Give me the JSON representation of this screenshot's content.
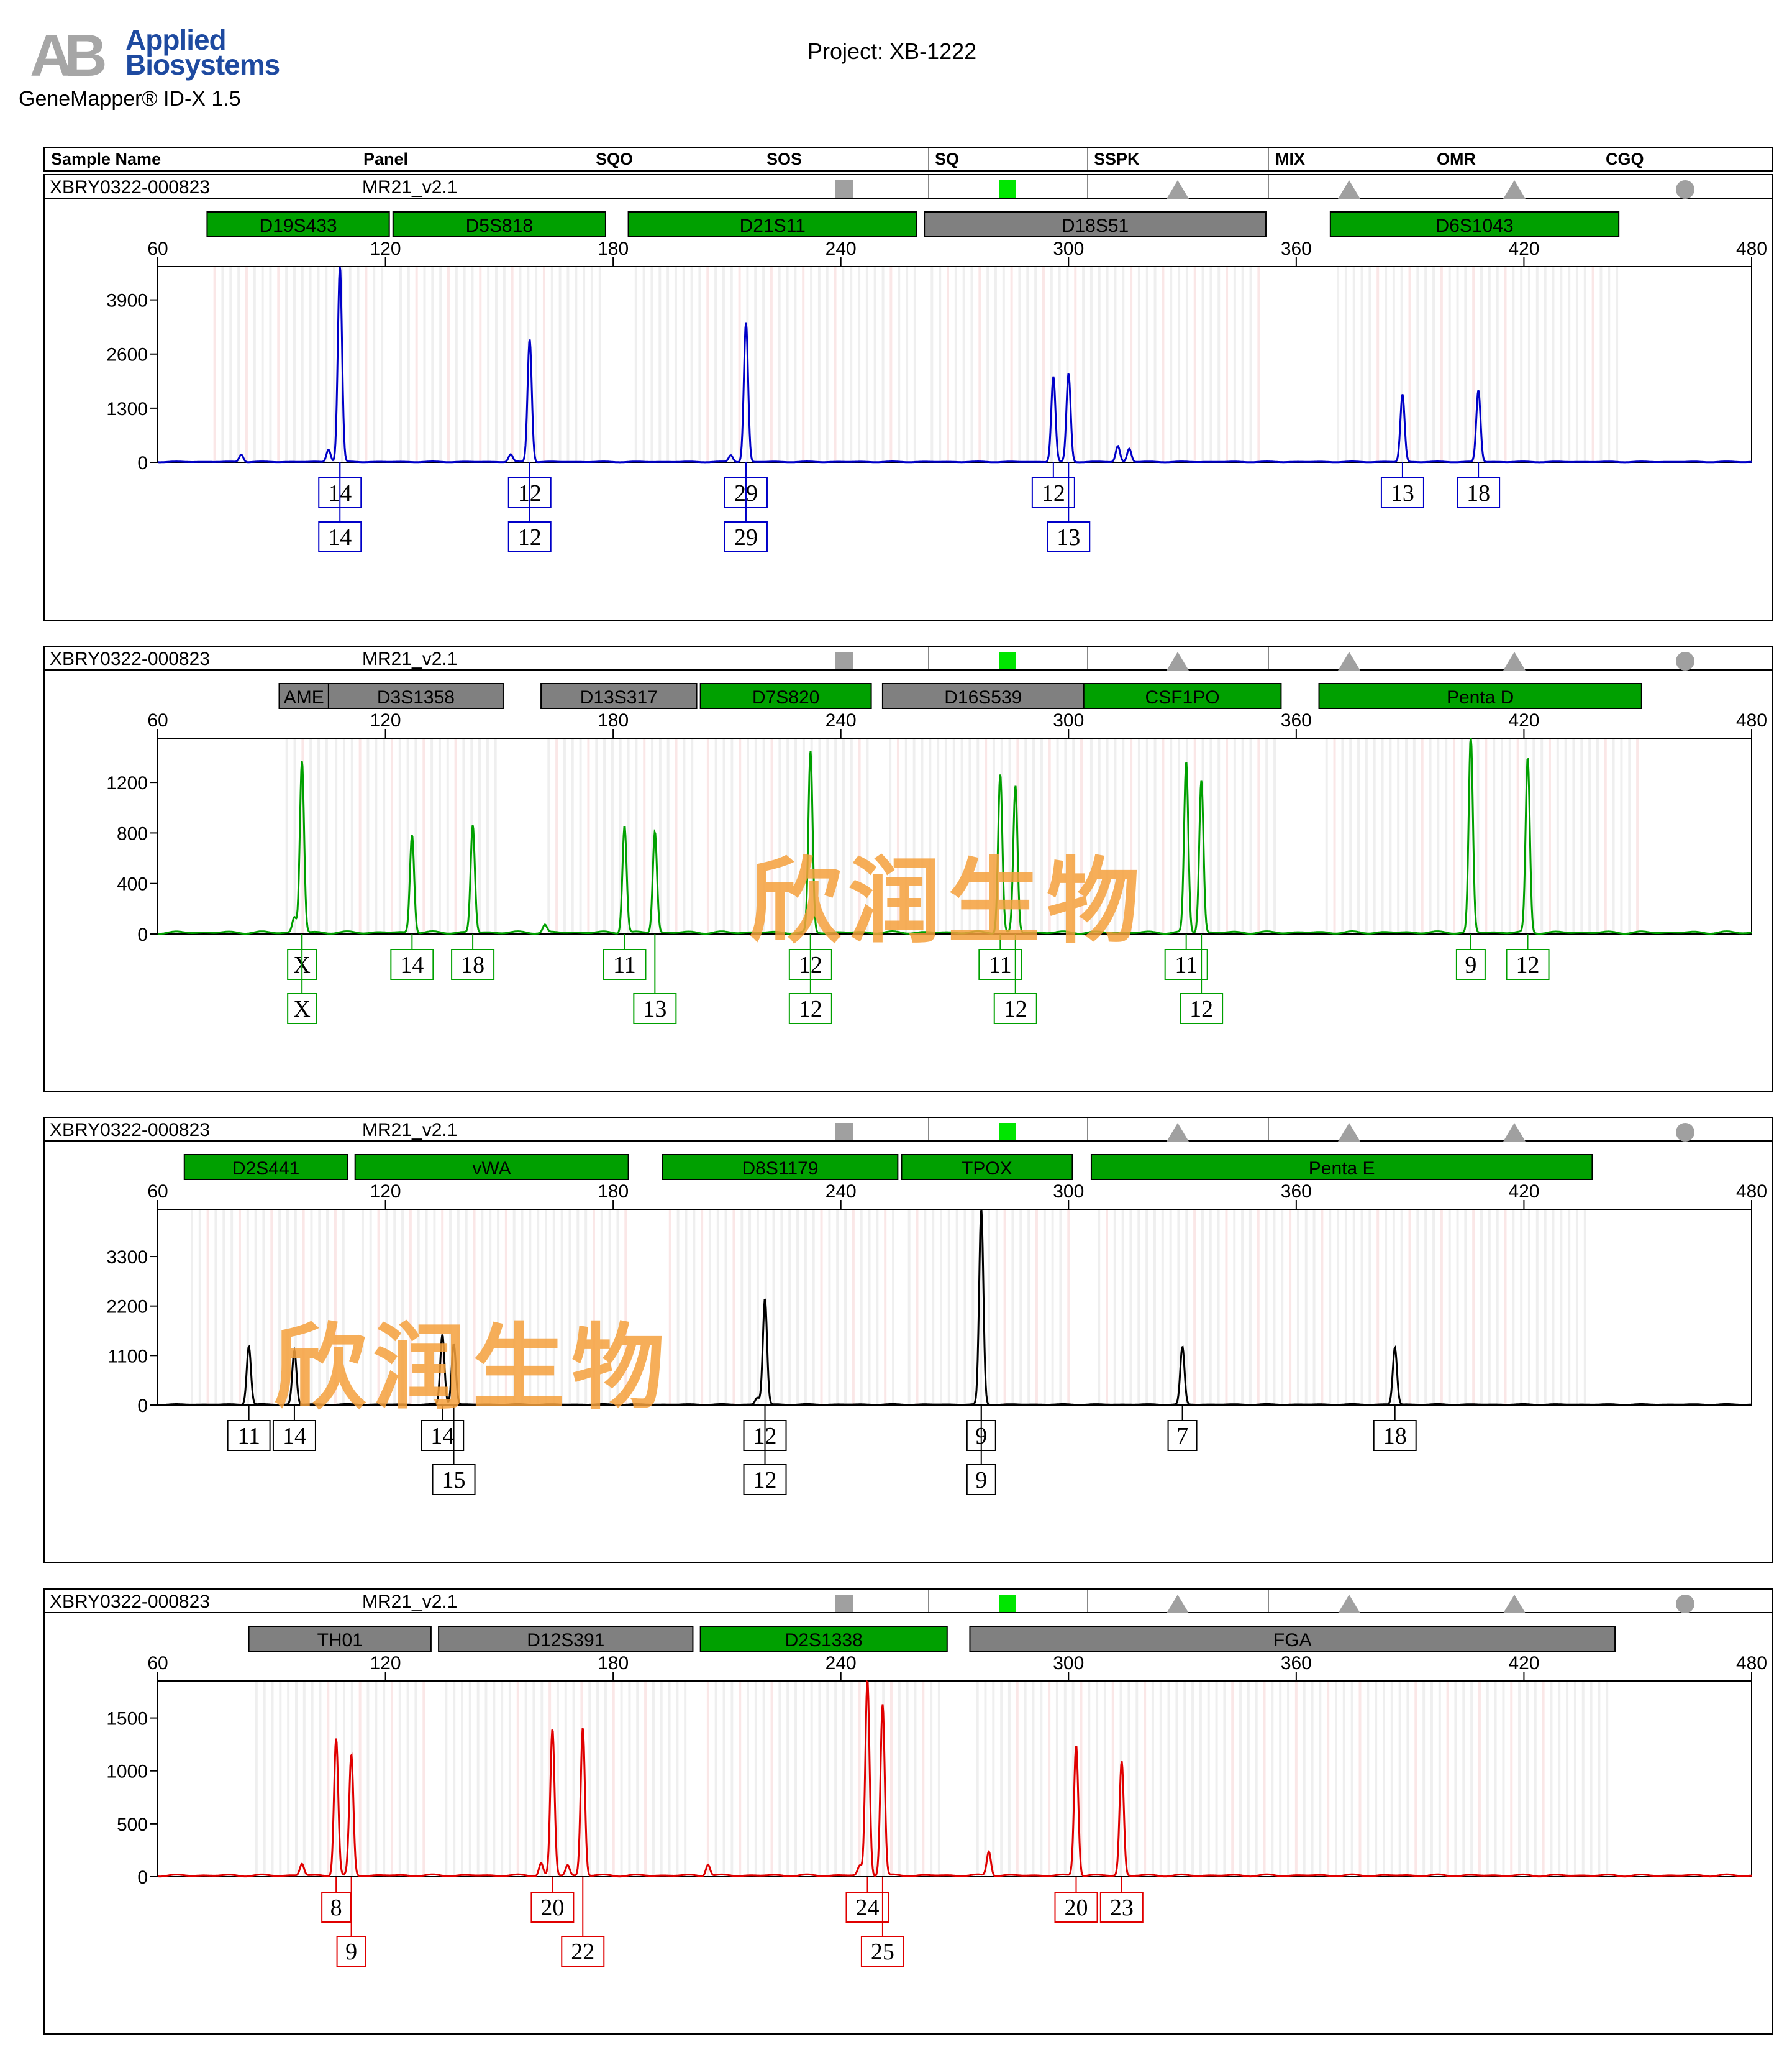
{
  "brand": {
    "line1": "Applied",
    "line2": "Biosystems",
    "app": "GeneMapper® ID-X  1.5"
  },
  "project": "Project: XB-1222",
  "header": {
    "columns": [
      "Sample Name",
      "Panel",
      "SQO",
      "SOS",
      "SQ",
      "SSPK",
      "MIX",
      "OMR",
      "CGQ"
    ]
  },
  "watermark": "欣润生物",
  "colors": {
    "blue": "#0000c8",
    "green": "#00a000",
    "black": "#000000",
    "red": "#e00000",
    "marker_green": "#00a000",
    "marker_gray": "#808080"
  },
  "panels": [
    {
      "sample": "XBRY0322-000823",
      "panel_name": "MR21_v2.1",
      "flags": [
        "sq-gray",
        "sq-green",
        "tri",
        "tri",
        "tri",
        "circ"
      ],
      "dye": "blue",
      "markers": [
        {
          "name": "D19S433",
          "from": 73,
          "to": 121,
          "status": "green"
        },
        {
          "name": "D5S818",
          "from": 122,
          "to": 178,
          "status": "green"
        },
        {
          "name": "D21S11",
          "from": 184,
          "to": 260,
          "status": "green"
        },
        {
          "name": "D18S51",
          "from": 262,
          "to": 352,
          "status": "gray"
        },
        {
          "name": "D6S1043",
          "from": 369,
          "to": 445,
          "status": "green"
        }
      ],
      "chart_data": {
        "type": "line",
        "xlabel": "",
        "ylabel": "",
        "xlim": [
          60,
          480
        ],
        "x_ticks": [
          60,
          120,
          180,
          240,
          300,
          360,
          420,
          480
        ],
        "ylim": [
          0,
          4700
        ],
        "y_ticks": [
          0,
          1300,
          2600,
          3900
        ],
        "peaks": [
          [
            108,
            4700
          ],
          [
            158,
            2950
          ],
          [
            215,
            3350
          ],
          [
            296,
            2050
          ],
          [
            300,
            2120
          ],
          [
            388,
            1620
          ],
          [
            408,
            1720
          ],
          [
            82,
            180
          ],
          [
            105,
            300
          ],
          [
            153,
            180
          ],
          [
            211,
            160
          ],
          [
            313,
            380
          ],
          [
            316,
            320
          ]
        ],
        "alleles": [
          {
            "x": 108,
            "labels": [
              "14",
              "14"
            ]
          },
          {
            "x": 158,
            "labels": [
              "12",
              "12"
            ]
          },
          {
            "x": 215,
            "labels": [
              "29",
              "29"
            ]
          },
          {
            "x": 296,
            "labels": [
              "12"
            ]
          },
          {
            "x": 300,
            "labels": [
              "",
              "13"
            ]
          },
          {
            "x": 388,
            "labels": [
              "13"
            ]
          },
          {
            "x": 408,
            "labels": [
              "18"
            ]
          }
        ]
      }
    },
    {
      "sample": "XBRY0322-000823",
      "panel_name": "MR21_v2.1",
      "flags": [
        "sq-gray",
        "sq-green",
        "tri",
        "tri",
        "tri",
        "circ"
      ],
      "dye": "green",
      "markers": [
        {
          "name": "AME",
          "from": 92,
          "to": 105,
          "status": "gray"
        },
        {
          "name": "D3S1358",
          "from": 105,
          "to": 151,
          "status": "gray"
        },
        {
          "name": "D13S317",
          "from": 161,
          "to": 202,
          "status": "gray"
        },
        {
          "name": "D7S820",
          "from": 203,
          "to": 248,
          "status": "green"
        },
        {
          "name": "D16S539",
          "from": 251,
          "to": 304,
          "status": "gray"
        },
        {
          "name": "CSF1PO",
          "from": 304,
          "to": 356,
          "status": "green"
        },
        {
          "name": "Penta D",
          "from": 366,
          "to": 451,
          "status": "green"
        }
      ],
      "chart_data": {
        "type": "line",
        "xlabel": "",
        "ylabel": "",
        "xlim": [
          60,
          480
        ],
        "x_ticks": [
          60,
          120,
          180,
          240,
          300,
          360,
          420,
          480
        ],
        "ylim": [
          0,
          1550
        ],
        "y_ticks": [
          0,
          400,
          800,
          1200
        ],
        "peaks": [
          [
            98,
            1360
          ],
          [
            127,
            780
          ],
          [
            143,
            850
          ],
          [
            183,
            850
          ],
          [
            191,
            800
          ],
          [
            232,
            1430
          ],
          [
            282,
            1260
          ],
          [
            286,
            1160
          ],
          [
            331,
            1350
          ],
          [
            335,
            1210
          ],
          [
            406,
            1550
          ],
          [
            421,
            1380
          ],
          [
            96,
            120
          ],
          [
            162,
            60
          ]
        ],
        "alleles": [
          {
            "x": 98,
            "labels": [
              "X",
              "X"
            ]
          },
          {
            "x": 127,
            "labels": [
              "14"
            ]
          },
          {
            "x": 143,
            "labels": [
              "18"
            ]
          },
          {
            "x": 183,
            "labels": [
              "11"
            ]
          },
          {
            "x": 191,
            "labels": [
              "",
              "13"
            ]
          },
          {
            "x": 232,
            "labels": [
              "12",
              "12"
            ]
          },
          {
            "x": 282,
            "labels": [
              "11"
            ]
          },
          {
            "x": 286,
            "labels": [
              "",
              "12"
            ]
          },
          {
            "x": 331,
            "labels": [
              "11"
            ]
          },
          {
            "x": 335,
            "labels": [
              "",
              "12"
            ]
          },
          {
            "x": 406,
            "labels": [
              "9"
            ]
          },
          {
            "x": 421,
            "labels": [
              "12"
            ]
          }
        ]
      }
    },
    {
      "sample": "XBRY0322-000823",
      "panel_name": "MR21_v2.1",
      "flags": [
        "sq-gray",
        "sq-green",
        "tri",
        "tri",
        "tri",
        "circ"
      ],
      "dye": "black",
      "markers": [
        {
          "name": "D2S441",
          "from": 67,
          "to": 110,
          "status": "green"
        },
        {
          "name": "vWA",
          "from": 112,
          "to": 184,
          "status": "green"
        },
        {
          "name": "D8S1179",
          "from": 193,
          "to": 255,
          "status": "green"
        },
        {
          "name": "TPOX",
          "from": 256,
          "to": 301,
          "status": "green"
        },
        {
          "name": "Penta E",
          "from": 306,
          "to": 438,
          "status": "green"
        }
      ],
      "chart_data": {
        "type": "line",
        "xlabel": "",
        "ylabel": "",
        "xlim": [
          60,
          480
        ],
        "x_ticks": [
          60,
          120,
          180,
          240,
          300,
          360,
          420,
          480
        ],
        "ylim": [
          0,
          4350
        ],
        "y_ticks": [
          0,
          1100,
          2200,
          3300
        ],
        "peaks": [
          [
            84,
            1300
          ],
          [
            96,
            1200
          ],
          [
            135,
            1560
          ],
          [
            138,
            1350
          ],
          [
            220,
            2350
          ],
          [
            277,
            4350
          ],
          [
            330,
            1280
          ],
          [
            386,
            1260
          ],
          [
            218,
            150
          ]
        ],
        "alleles": [
          {
            "x": 84,
            "labels": [
              "11"
            ]
          },
          {
            "x": 96,
            "labels": [
              "14"
            ]
          },
          {
            "x": 135,
            "labels": [
              "14"
            ]
          },
          {
            "x": 138,
            "labels": [
              "",
              "15"
            ]
          },
          {
            "x": 220,
            "labels": [
              "12",
              "12"
            ]
          },
          {
            "x": 277,
            "labels": [
              "9",
              "9"
            ]
          },
          {
            "x": 330,
            "labels": [
              "7"
            ]
          },
          {
            "x": 386,
            "labels": [
              "18"
            ]
          }
        ]
      }
    },
    {
      "sample": "XBRY0322-000823",
      "panel_name": "MR21_v2.1",
      "flags": [
        "sq-gray",
        "sq-green",
        "tri",
        "tri",
        "tri",
        "circ"
      ],
      "dye": "red",
      "markers": [
        {
          "name": "TH01",
          "from": 84,
          "to": 132,
          "status": "gray"
        },
        {
          "name": "D12S391",
          "from": 134,
          "to": 201,
          "status": "gray"
        },
        {
          "name": "D2S1338",
          "from": 203,
          "to": 268,
          "status": "green"
        },
        {
          "name": "FGA",
          "from": 274,
          "to": 444,
          "status": "gray"
        }
      ],
      "chart_data": {
        "type": "line",
        "xlabel": "",
        "ylabel": "",
        "xlim": [
          60,
          480
        ],
        "x_ticks": [
          60,
          120,
          180,
          240,
          300,
          360,
          420,
          480
        ],
        "ylim": [
          0,
          1850
        ],
        "y_ticks": [
          0,
          500,
          1000,
          1500
        ],
        "peaks": [
          [
            107,
            1300
          ],
          [
            111,
            1140
          ],
          [
            164,
            1380
          ],
          [
            172,
            1400
          ],
          [
            247,
            1850
          ],
          [
            251,
            1620
          ],
          [
            302,
            1240
          ],
          [
            314,
            1080
          ],
          [
            98,
            110
          ],
          [
            205,
            110
          ],
          [
            279,
            230
          ],
          [
            161,
            120
          ],
          [
            168,
            100
          ],
          [
            245,
            90
          ]
        ],
        "alleles": [
          {
            "x": 107,
            "labels": [
              "8"
            ]
          },
          {
            "x": 111,
            "labels": [
              "",
              "9"
            ]
          },
          {
            "x": 164,
            "labels": [
              "20"
            ]
          },
          {
            "x": 172,
            "labels": [
              "",
              "22"
            ]
          },
          {
            "x": 247,
            "labels": [
              "24"
            ]
          },
          {
            "x": 251,
            "labels": [
              "",
              "25"
            ]
          },
          {
            "x": 302,
            "labels": [
              "20"
            ]
          },
          {
            "x": 314,
            "labels": [
              "23"
            ]
          }
        ]
      }
    }
  ]
}
